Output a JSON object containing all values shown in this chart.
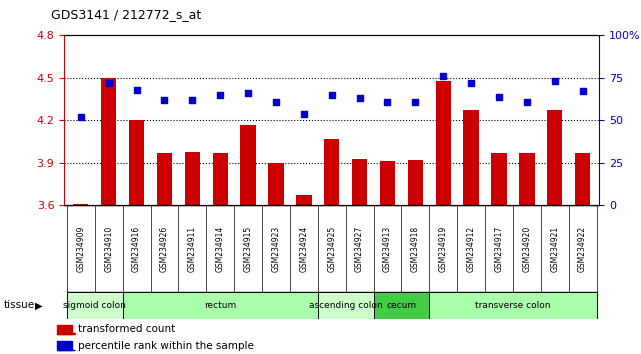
{
  "title": "GDS3141 / 212772_s_at",
  "samples": [
    "GSM234909",
    "GSM234910",
    "GSM234916",
    "GSM234926",
    "GSM234911",
    "GSM234914",
    "GSM234915",
    "GSM234923",
    "GSM234924",
    "GSM234925",
    "GSM234927",
    "GSM234913",
    "GSM234918",
    "GSM234919",
    "GSM234912",
    "GSM234917",
    "GSM234920",
    "GSM234921",
    "GSM234922"
  ],
  "bar_values": [
    3.61,
    4.5,
    4.2,
    3.97,
    3.98,
    3.97,
    4.17,
    3.9,
    3.67,
    4.07,
    3.93,
    3.91,
    3.92,
    4.48,
    4.27,
    3.97,
    3.97,
    4.27,
    3.97
  ],
  "dot_values_pct": [
    52,
    72,
    68,
    62,
    62,
    65,
    66,
    61,
    54,
    65,
    63,
    61,
    61,
    76,
    72,
    64,
    61,
    73,
    67
  ],
  "bar_color": "#cc0000",
  "dot_color": "#0000cc",
  "ylim_left": [
    3.6,
    4.8
  ],
  "ylim_right": [
    0,
    100
  ],
  "yticks_left": [
    3.6,
    3.9,
    4.2,
    4.5,
    4.8
  ],
  "yticks_right": [
    0,
    25,
    50,
    75,
    100
  ],
  "ytick_labels_right": [
    "0",
    "25",
    "50",
    "75",
    "100%"
  ],
  "grid_values": [
    3.9,
    4.2,
    4.5
  ],
  "tissue_groups": [
    {
      "label": "sigmoid colon",
      "start": 0,
      "end": 2,
      "color": "#ccffcc"
    },
    {
      "label": "rectum",
      "start": 2,
      "end": 9,
      "color": "#aaffaa"
    },
    {
      "label": "ascending colon",
      "start": 9,
      "end": 11,
      "color": "#ccffcc"
    },
    {
      "label": "cecum",
      "start": 11,
      "end": 13,
      "color": "#44cc44"
    },
    {
      "label": "transverse colon",
      "start": 13,
      "end": 19,
      "color": "#aaffaa"
    }
  ],
  "legend_items": [
    {
      "label": "transformed count",
      "color": "#cc0000"
    },
    {
      "label": "percentile rank within the sample",
      "color": "#0000cc"
    }
  ],
  "plot_bg_color": "#ffffff",
  "tick_bg_color": "#cccccc"
}
